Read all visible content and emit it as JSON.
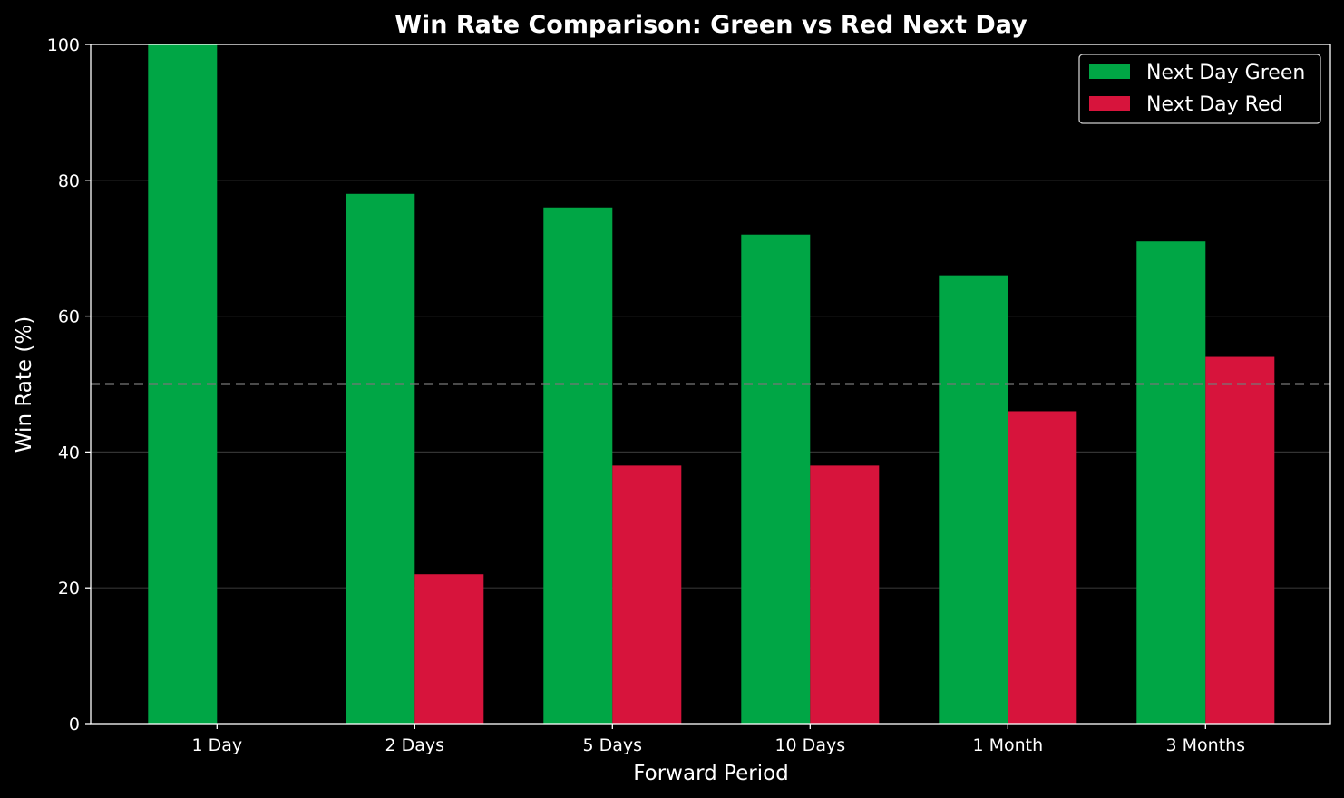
{
  "chart_data": {
    "type": "bar",
    "title": "Win Rate Comparison: Green vs Red Next Day",
    "xlabel": "Forward Period",
    "ylabel": "Win Rate (%)",
    "ylim": [
      0,
      100
    ],
    "yticks": [
      "0",
      "20",
      "40",
      "60",
      "80",
      "100"
    ],
    "categories": [
      "1 Day",
      "2 Days",
      "5 Days",
      "10 Days",
      "1 Month",
      "3 Months"
    ],
    "series": [
      {
        "name": "Next Day Green",
        "color": "#00a645",
        "values": [
          100,
          78,
          76,
          72,
          66,
          71
        ]
      },
      {
        "name": "Next Day Red",
        "color": "#d7143c",
        "values": [
          0,
          22,
          38,
          38,
          46,
          54
        ]
      }
    ],
    "reference_line": {
      "value": 50,
      "style": "dashed",
      "color": "#777777"
    },
    "grid": true,
    "legend_position": "top-right",
    "background": "#000000"
  }
}
